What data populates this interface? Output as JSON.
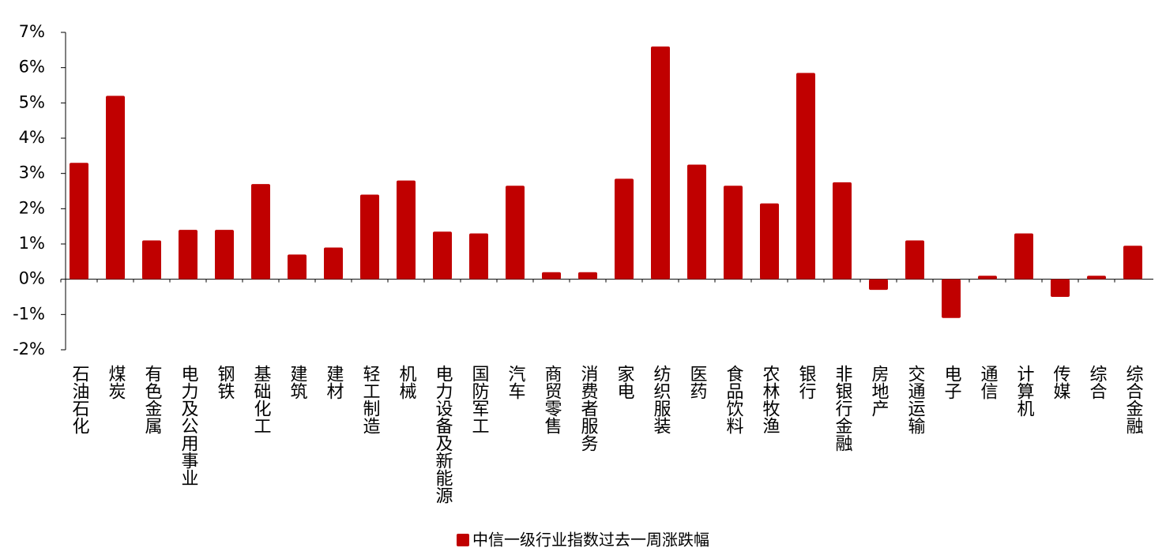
{
  "chart_data": {
    "type": "bar",
    "categories": [
      "石油石化",
      "煤炭",
      "有色金属",
      "电力及公用事业",
      "钢铁",
      "基础化工",
      "建筑",
      "建材",
      "轻工制造",
      "机械",
      "电力设备及新能源",
      "国防军工",
      "汽车",
      "商贸零售",
      "消费者服务",
      "家电",
      "纺织服装",
      "医药",
      "食品饮料",
      "农林牧渔",
      "银行",
      "非银行金融",
      "房地产",
      "交通运输",
      "电子",
      "通信",
      "计算机",
      "传媒",
      "综合",
      "综合金融"
    ],
    "series": [
      {
        "name": "中信一级行业指数过去一周涨跌幅",
        "color": "#c00000",
        "values": [
          3.3,
          5.2,
          1.1,
          1.4,
          1.4,
          2.7,
          0.7,
          0.9,
          2.4,
          2.8,
          1.35,
          1.3,
          2.65,
          0.2,
          0.2,
          2.85,
          6.6,
          3.25,
          2.65,
          2.15,
          5.85,
          2.75,
          -0.3,
          1.1,
          -1.1,
          0.1,
          1.3,
          -0.5,
          0.1,
          0.95
        ]
      }
    ],
    "ylim": [
      -2,
      7
    ],
    "yticks": [
      {
        "value": -2,
        "label": "-2%"
      },
      {
        "value": -1,
        "label": "-1%"
      },
      {
        "value": 0,
        "label": "0%"
      },
      {
        "value": 1,
        "label": "1%"
      },
      {
        "value": 2,
        "label": "2%"
      },
      {
        "value": 3,
        "label": "3%"
      },
      {
        "value": 4,
        "label": "4%"
      },
      {
        "value": 5,
        "label": "5%"
      },
      {
        "value": 6,
        "label": "6%"
      },
      {
        "value": 7,
        "label": "7%"
      }
    ],
    "legend": "bottom"
  }
}
